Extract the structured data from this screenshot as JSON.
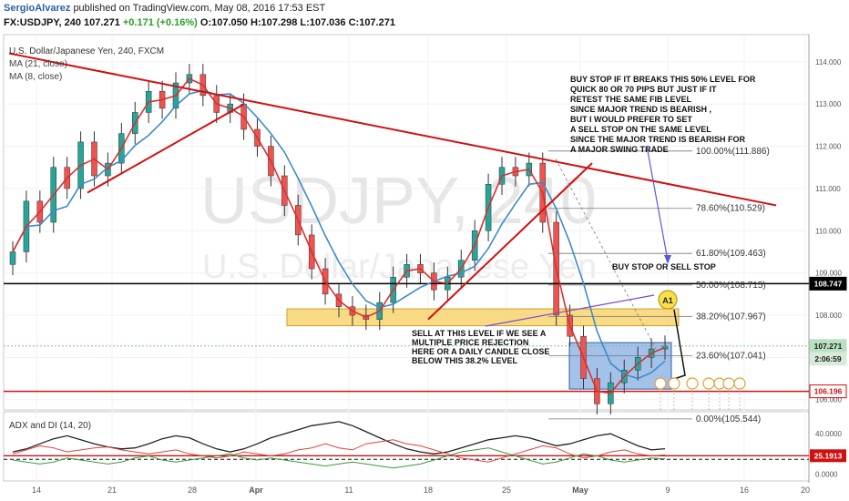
{
  "header": {
    "author": "SergioAlvarez",
    "published_text": "published on TradingView.com, May 08, 2016 17:53 EST",
    "symbol_line": {
      "symbol": "FX:USDJPY, 240",
      "last": "107.271",
      "change": "+0.171 (+0.16%)",
      "o": "O:107.050",
      "h": "H:107.298",
      "l": "L:107.036",
      "c": "C:107.271"
    }
  },
  "chart_data": {
    "type": "candlestick",
    "title": "U.S. Dollar/Japanese Yen, 240, FXCM",
    "watermark_symbol": "USDJPY, 240",
    "watermark_name": "U.S. Dollar/Japanese Yen",
    "indicators": [
      "MA (21, close)",
      "MA (8, close)"
    ],
    "price_axis_ticks": [
      "114.000",
      "113.000",
      "112.000",
      "111.000",
      "110.000",
      "109.000",
      "108.000",
      "107.000",
      "106.000"
    ],
    "ylim": [
      105.8,
      114.6
    ],
    "price_badges": [
      {
        "value": "108.747",
        "color": "#000000",
        "text_color": "#ffffff"
      },
      {
        "value": "107.271",
        "color": "#b8e0c0",
        "text_color": "#1a1a1a"
      },
      {
        "value": "2:06:59",
        "color": "#d8ead8",
        "text_color": "#1a1a1a"
      },
      {
        "value": "106.196",
        "color": "#ffffff",
        "text_color": "#d01010"
      }
    ],
    "fib_levels": [
      {
        "label": "100.00%(111.886)",
        "value": 111.886
      },
      {
        "label": "78.60%(110.529)",
        "value": 110.529
      },
      {
        "label": "61.80%(109.463)",
        "value": 109.463
      },
      {
        "label": "50.00%(108.715)",
        "value": 108.715
      },
      {
        "label": "38.20%(107.967)",
        "value": 107.967
      },
      {
        "label": "23.60%(107.041)",
        "value": 107.041
      },
      {
        "label": "0.00%(105.544)",
        "value": 105.544
      }
    ],
    "horizontal_levels": [
      {
        "value": 108.747,
        "color": "#000000"
      },
      {
        "value": 106.196,
        "color": "#d01010"
      }
    ],
    "x_axis_labels": [
      "14",
      "21",
      "28",
      "Apr",
      "11",
      "18",
      "25",
      "May",
      "9",
      "16",
      "20"
    ],
    "annotations": {
      "top_right": [
        "BUY STOP IF IT BREAKS THIS 50% LEVEL FOR",
        "QUICK 80 OR 70 PIPS BUT JUST IF IT",
        "RETEST THE SAME FIB LEVEL",
        "SINCE MAJOR TREND IS BEARISH ,",
        "BUT I WOULD PREFER TO SET",
        "A SELL STOP ON THE SAME LEVEL",
        "SINCE THE MAJOR TREND IS BEARISH FOR",
        "A MAJOR SWING TRADE"
      ],
      "buy_sell_stop": "BUY STOP OR SELL STOP",
      "sell_note": [
        "SELL AT THIS LEVEL IF WE SEE A",
        "MULTIPLE PRICE REJECTION",
        "HERE OR A DAILY CANDLE CLOSE",
        "BELOW THIS 38.2% LEVEL"
      ],
      "circle_marker": "A1"
    },
    "close_series": [
      109.5,
      110.7,
      110.2,
      111.5,
      111.0,
      112.1,
      111.3,
      111.6,
      112.3,
      112.8,
      113.3,
      112.9,
      113.5,
      113.7,
      113.2,
      112.8,
      113.0,
      112.4,
      112.0,
      111.3,
      110.6,
      109.9,
      109.1,
      108.5,
      108.2,
      108.0,
      107.9,
      108.3,
      108.9,
      109.2,
      109.0,
      108.6,
      108.9,
      109.3,
      110.0,
      111.1,
      111.5,
      111.3,
      111.6,
      110.2,
      108.0,
      107.5,
      106.5,
      105.9,
      106.4,
      106.7,
      107.0,
      107.2,
      107.271
    ],
    "adx_panel": {
      "title": "ADX and DI (14, 20)",
      "ticks": [
        "40.0000",
        "0.0000"
      ],
      "ylim": [
        -5,
        60
      ],
      "level": 20,
      "badge": "25.1913",
      "adx": [
        22,
        25,
        30,
        35,
        38,
        34,
        30,
        27,
        25,
        26,
        30,
        35,
        38,
        36,
        30,
        25,
        22,
        25,
        30,
        36,
        40,
        44,
        48,
        50,
        52,
        48,
        42,
        36,
        30,
        25,
        22,
        20,
        22,
        26,
        30,
        34,
        36,
        38,
        36,
        32,
        28,
        30,
        34,
        38,
        40,
        34,
        28,
        24,
        25.19
      ],
      "di_plus": [
        20,
        24,
        28,
        26,
        22,
        24,
        26,
        27,
        24,
        22,
        20,
        22,
        24,
        20,
        18,
        16,
        18,
        22,
        20,
        18,
        20,
        24,
        26,
        30,
        26,
        24,
        30,
        32,
        34,
        30,
        28,
        24,
        20,
        16,
        14,
        12,
        16,
        20,
        24,
        28,
        26,
        20,
        16,
        18,
        22,
        24,
        20,
        18,
        19
      ],
      "di_minus": [
        14,
        12,
        10,
        12,
        16,
        14,
        12,
        10,
        12,
        16,
        18,
        14,
        12,
        14,
        16,
        18,
        20,
        16,
        14,
        16,
        14,
        12,
        10,
        8,
        10,
        12,
        10,
        8,
        6,
        8,
        10,
        14,
        18,
        22,
        24,
        26,
        22,
        18,
        14,
        10,
        12,
        16,
        20,
        18,
        14,
        12,
        14,
        16,
        15
      ]
    }
  }
}
